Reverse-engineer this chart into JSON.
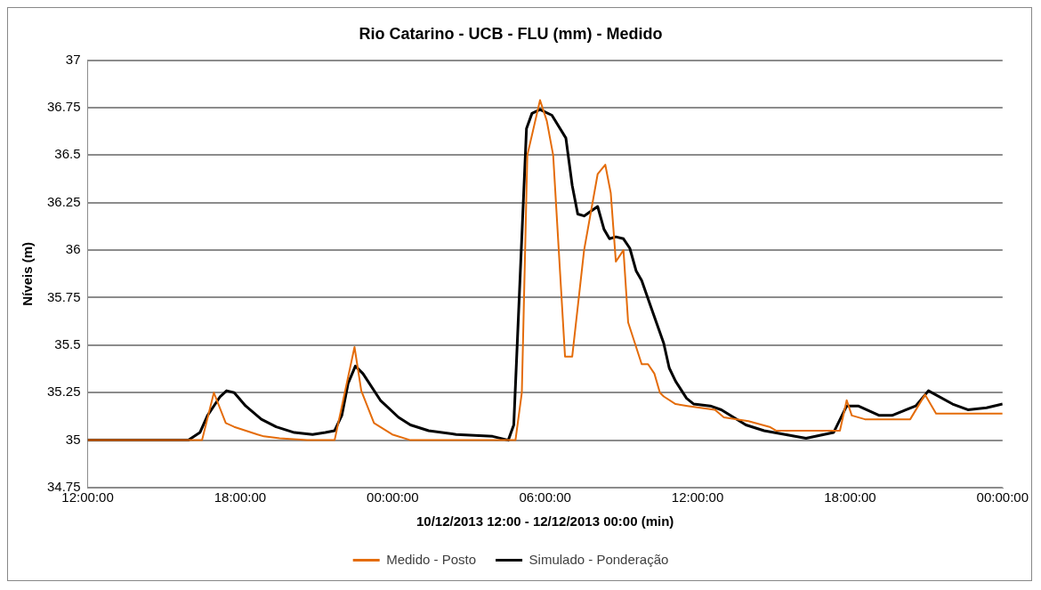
{
  "chart_data": {
    "type": "line",
    "title": "Rio Catarino - UCB - FLU (mm) - Medido",
    "xlabel": "10/12/2013 12:00 - 12/12/2013 00:00 (min)",
    "ylabel": "Níveis (m)",
    "xlim": [
      "2013-12-10T12:00",
      "2013-12-12T00:00"
    ],
    "xticks": [
      {
        "value": "2013-12-10T12:00",
        "label": "12:00:00"
      },
      {
        "value": "2013-12-10T18:00",
        "label": "18:00:00"
      },
      {
        "value": "2013-12-11T00:00",
        "label": "00:00:00"
      },
      {
        "value": "2013-12-11T06:00",
        "label": "06:00:00"
      },
      {
        "value": "2013-12-11T12:00",
        "label": "12:00:00"
      },
      {
        "value": "2013-12-11T18:00",
        "label": "18:00:00"
      },
      {
        "value": "2013-12-12T00:00",
        "label": "00:00:00"
      }
    ],
    "ylim": [
      34.75,
      37
    ],
    "yticks": [
      34.75,
      35,
      35.25,
      35.5,
      35.75,
      36,
      36.25,
      36.5,
      36.75,
      37
    ],
    "grid": "y",
    "legend": "bottom",
    "marker": "none",
    "line_style": "solid",
    "series": [
      {
        "name": "Medido - Posto",
        "color": "#e46c0a",
        "x": [
          "2013-12-10T12:00",
          "2013-12-10T16:30",
          "2013-12-10T16:58",
          "2013-12-10T17:26",
          "2013-12-10T17:46",
          "2013-12-10T18:41",
          "2013-12-10T18:56",
          "2013-12-10T19:33",
          "2013-12-10T20:38",
          "2013-12-10T21:43",
          "2013-12-10T22:30",
          "2013-12-10T22:46",
          "2013-12-10T23:16",
          "2013-12-10T23:59",
          "2013-12-11T00:42",
          "2013-12-11T04:50",
          "2013-12-11T05:05",
          "2013-12-11T05:18",
          "2013-12-11T05:48",
          "2013-12-11T06:04",
          "2013-12-11T06:19",
          "2013-12-11T06:47",
          "2013-12-11T07:04",
          "2013-12-11T07:32",
          "2013-12-11T08:04",
          "2013-12-11T08:22",
          "2013-12-11T08:35",
          "2013-12-11T08:47",
          "2013-12-11T09:05",
          "2013-12-11T09:16",
          "2013-12-11T09:48",
          "2013-12-11T10:03",
          "2013-12-11T10:18",
          "2013-12-11T10:31",
          "2013-12-11T10:40",
          "2013-12-11T11:08",
          "2013-12-11T11:36",
          "2013-12-11T12:41",
          "2013-12-11T13:02",
          "2013-12-11T14:00",
          "2013-12-11T14:50",
          "2013-12-11T15:05",
          "2013-12-11T17:36",
          "2013-12-11T17:52",
          "2013-12-11T18:04",
          "2013-12-11T18:35",
          "2013-12-11T20:22",
          "2013-12-11T20:57",
          "2013-12-11T21:23",
          "2013-12-11T22:23",
          "2013-12-12T00:00"
        ],
        "values": [
          35.0,
          35.0,
          35.25,
          35.09,
          35.07,
          35.03,
          35.02,
          35.01,
          35.0,
          35.0,
          35.49,
          35.26,
          35.09,
          35.03,
          35.0,
          35.0,
          35.25,
          36.5,
          36.79,
          36.68,
          36.5,
          35.44,
          35.44,
          36.0,
          36.4,
          36.45,
          36.3,
          35.94,
          36.0,
          35.62,
          35.4,
          35.4,
          35.35,
          35.25,
          35.23,
          35.19,
          35.18,
          35.16,
          35.12,
          35.1,
          35.07,
          35.05,
          35.05,
          35.21,
          35.13,
          35.11,
          35.11,
          35.24,
          35.14,
          35.14,
          35.14
        ]
      },
      {
        "name": "Simulado - Ponderação",
        "color": "#000000",
        "x": [
          "2013-12-10T12:00",
          "2013-12-10T15:58",
          "2013-12-10T16:25",
          "2013-12-10T16:43",
          "2013-12-10T17:13",
          "2013-12-10T17:28",
          "2013-12-10T17:46",
          "2013-12-10T18:13",
          "2013-12-10T18:50",
          "2013-12-10T19:25",
          "2013-12-10T20:08",
          "2013-12-10T20:51",
          "2013-12-10T21:21",
          "2013-12-10T21:43",
          "2013-12-10T22:00",
          "2013-12-10T22:15",
          "2013-12-10T22:32",
          "2013-12-10T22:50",
          "2013-12-10T23:31",
          "2013-12-11T00:14",
          "2013-12-11T00:42",
          "2013-12-11T01:25",
          "2013-12-11T02:30",
          "2013-12-11T03:56",
          "2013-12-11T04:33",
          "2013-12-11T04:46",
          "2013-12-11T05:16",
          "2013-12-11T05:29",
          "2013-12-11T05:48",
          "2013-12-11T06:16",
          "2013-12-11T06:49",
          "2013-12-11T07:04",
          "2013-12-11T07:17",
          "2013-12-11T07:32",
          "2013-12-11T08:04",
          "2013-12-11T08:19",
          "2013-12-11T08:32",
          "2013-12-11T08:47",
          "2013-12-11T09:05",
          "2013-12-11T09:20",
          "2013-12-11T09:35",
          "2013-12-11T09:48",
          "2013-12-11T10:10",
          "2013-12-11T10:40",
          "2013-12-11T10:53",
          "2013-12-11T11:08",
          "2013-12-11T11:34",
          "2013-12-11T11:51",
          "2013-12-11T12:30",
          "2013-12-11T12:56",
          "2013-12-11T13:54",
          "2013-12-11T14:37",
          "2013-12-11T16:16",
          "2013-12-11T17:21",
          "2013-12-11T17:52",
          "2013-12-11T18:19",
          "2013-12-11T19:09",
          "2013-12-11T19:39",
          "2013-12-11T20:35",
          "2013-12-11T21:05",
          "2013-12-11T22:02",
          "2013-12-11T22:38",
          "2013-12-11T23:22",
          "2013-12-12T00:00"
        ],
        "values": [
          35.0,
          35.0,
          35.04,
          35.13,
          35.23,
          35.26,
          35.25,
          35.18,
          35.11,
          35.07,
          35.04,
          35.03,
          35.04,
          35.05,
          35.13,
          35.3,
          35.39,
          35.35,
          35.21,
          35.12,
          35.08,
          35.05,
          35.03,
          35.02,
          35.0,
          35.08,
          36.64,
          36.72,
          36.74,
          36.71,
          36.59,
          36.34,
          36.19,
          36.18,
          36.23,
          36.11,
          36.06,
          36.07,
          36.06,
          36.01,
          35.89,
          35.84,
          35.7,
          35.51,
          35.38,
          35.31,
          35.22,
          35.19,
          35.18,
          35.16,
          35.08,
          35.05,
          35.01,
          35.04,
          35.18,
          35.18,
          35.13,
          35.13,
          35.18,
          35.26,
          35.19,
          35.16,
          35.17,
          35.19
        ]
      }
    ]
  }
}
